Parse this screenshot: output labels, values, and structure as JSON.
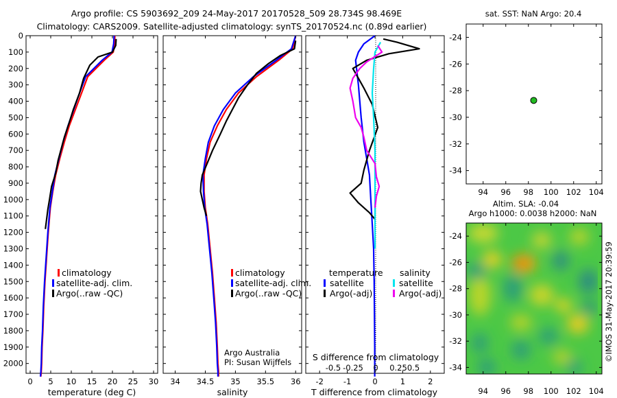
{
  "header": {
    "line1": "Argo profile: CS 5903692_209 24-May-2017 20170528_509 28.734S 98.469E",
    "line2": "Climatology: CARS2009. Satellite-adjusted climatology: synTS_20170524.nc (0.89d earlier)"
  },
  "colors": {
    "climatology": "#ff0000",
    "satellite": "#0000ff",
    "argo": "#000000",
    "salinity_satellite": "#00e5ee",
    "salinity_argo": "#ee00ee",
    "position_marker": "#22bb22"
  },
  "chart_data": [
    {
      "type": "line",
      "name": "temperature-profile",
      "xlabel": "temperature (deg C)",
      "ylabel": "",
      "xlim": [
        -1,
        31
      ],
      "ylim": [
        2060,
        0
      ],
      "xticks": [
        0,
        5,
        10,
        15,
        20,
        25,
        30
      ],
      "yticks": [
        0,
        100,
        200,
        300,
        400,
        500,
        600,
        700,
        800,
        900,
        1000,
        1100,
        1200,
        1300,
        1400,
        1500,
        1600,
        1700,
        1800,
        1900,
        2000
      ],
      "legend": [
        "climatology",
        "satellite-adj. clim.",
        "Argo(..raw -QC)"
      ],
      "series": [
        {
          "name": "climatology",
          "color": "#ff0000",
          "x": [
            20.6,
            20.5,
            20.2,
            18.0,
            14.0,
            12.5,
            11.0,
            9.5,
            8.3,
            7.2,
            6.2,
            5.5,
            4.9,
            4.4,
            4.0,
            3.6,
            3.3,
            3.1,
            2.9,
            2.8,
            2.7,
            2.6
          ],
          "y": [
            0,
            50,
            100,
            150,
            250,
            350,
            450,
            550,
            650,
            750,
            850,
            950,
            1050,
            1200,
            1350,
            1500,
            1650,
            1800,
            1900,
            2000,
            2050,
            2080
          ]
        },
        {
          "name": "satellite-adj. clim.",
          "color": "#0000ff",
          "x": [
            20.4,
            20.3,
            19.9,
            17.5,
            13.5,
            12.0,
            10.6,
            9.2,
            8.0,
            7.0,
            6.0,
            5.4,
            4.8,
            4.3,
            3.9,
            3.5,
            3.2,
            3.0,
            2.8,
            2.7,
            2.6,
            2.5
          ],
          "y": [
            0,
            50,
            100,
            150,
            250,
            350,
            450,
            550,
            650,
            750,
            850,
            950,
            1050,
            1200,
            1350,
            1500,
            1650,
            1800,
            1900,
            2000,
            2050,
            2080
          ]
        },
        {
          "name": "Argo(..raw -QC)",
          "color": "#000000",
          "x": [
            20.9,
            20.8,
            20.0,
            16.5,
            14.5,
            13.0,
            12.0,
            10.5,
            9.5,
            8.3,
            6.8,
            6.2,
            5.2,
            4.7,
            4.3,
            4.0,
            3.7
          ],
          "y": [
            20,
            60,
            100,
            130,
            180,
            260,
            350,
            450,
            530,
            620,
            760,
            840,
            920,
            1000,
            1060,
            1120,
            1180
          ]
        }
      ],
      "annotations": []
    },
    {
      "type": "line",
      "name": "salinity-profile",
      "xlabel": "salinity",
      "xlim": [
        33.8,
        36.1
      ],
      "ylim": [
        2060,
        0
      ],
      "xticks": [
        34,
        34.5,
        35,
        35.5,
        36
      ],
      "legend": [
        "climatology",
        "satellite-adj. clim.",
        "Argo(..raw -QC)"
      ],
      "series": [
        {
          "name": "climatology",
          "color": "#ff0000",
          "x": [
            36.0,
            35.95,
            35.72,
            35.35,
            35.05,
            34.85,
            34.7,
            34.58,
            34.52,
            34.48,
            34.48,
            34.5,
            34.54,
            34.58,
            34.62,
            34.65,
            34.68,
            34.7,
            34.71,
            34.72,
            34.72
          ],
          "y": [
            0,
            80,
            150,
            250,
            350,
            450,
            550,
            650,
            750,
            850,
            950,
            1050,
            1150,
            1300,
            1450,
            1600,
            1750,
            1900,
            2000,
            2050,
            2080
          ]
        },
        {
          "name": "satellite-adj. clim.",
          "color": "#0000ff",
          "x": [
            36.0,
            35.93,
            35.68,
            35.3,
            35.0,
            34.8,
            34.65,
            34.55,
            34.5,
            34.46,
            34.47,
            34.49,
            34.53,
            34.57,
            34.61,
            34.64,
            34.67,
            34.69,
            34.7,
            34.71,
            34.71
          ],
          "y": [
            0,
            80,
            150,
            250,
            350,
            450,
            550,
            650,
            750,
            850,
            950,
            1050,
            1150,
            1300,
            1450,
            1600,
            1750,
            1900,
            2000,
            2050,
            2080
          ]
        },
        {
          "name": "Argo(..raw -QC)",
          "color": "#000000",
          "x": [
            36.0,
            35.98,
            35.75,
            35.55,
            35.35,
            35.2,
            35.05,
            34.95,
            34.85,
            34.75,
            34.62,
            34.53,
            34.45,
            34.43,
            34.42,
            34.45,
            34.48,
            34.52
          ],
          "y": [
            30,
            80,
            120,
            170,
            230,
            300,
            380,
            450,
            520,
            600,
            700,
            780,
            850,
            900,
            950,
            1000,
            1050,
            1100
          ]
        }
      ],
      "annotations": [
        "Argo Australia",
        "PI: Susan Wijffels"
      ]
    },
    {
      "type": "line",
      "name": "difference-profile",
      "xlabel": "T difference from climatology",
      "xlabel_top": "S difference from climatology",
      "xlim": [
        -2.5,
        2.5
      ],
      "ylim": [
        2060,
        0
      ],
      "xticks": [
        -2,
        -1,
        0,
        1,
        2
      ],
      "xticks_top": [
        -0.5,
        -0.25,
        0,
        0.25,
        0.5
      ],
      "legend_groups": {
        "temperature": [
          "satellite",
          "Argo(-adj)"
        ],
        "salinity": [
          "satellite",
          "Argo(-adj)"
        ]
      },
      "series": [
        {
          "name": "temperature satellite",
          "color": "#0000ff",
          "x": [
            0.0,
            -0.4,
            -0.6,
            -0.7,
            -0.6,
            -0.5,
            -0.4,
            -0.3,
            -0.2,
            -0.15,
            -0.1,
            -0.05,
            -0.03,
            -0.02,
            -0.01,
            -0.01
          ],
          "y": [
            0,
            50,
            100,
            150,
            300,
            500,
            650,
            750,
            850,
            1000,
            1150,
            1300,
            1500,
            1700,
            1900,
            2080
          ]
        },
        {
          "name": "temperature Argo(-adj)",
          "color": "#000000",
          "x": [
            0.3,
            0.8,
            1.6,
            0.5,
            -0.3,
            -0.8,
            -0.6,
            -0.4,
            -0.1,
            0.1,
            -0.2,
            -0.4,
            -0.5,
            -0.9,
            -0.6,
            -0.2,
            0.0
          ],
          "y": [
            20,
            40,
            80,
            110,
            150,
            200,
            260,
            320,
            420,
            560,
            700,
            820,
            900,
            960,
            1020,
            1080,
            1120
          ]
        },
        {
          "name": "salinity satellite",
          "color": "#00e5ee",
          "x": [
            0.2,
            0.0,
            -0.05,
            -0.1,
            -0.05,
            0.0,
            0.0,
            0.0,
            0.0
          ],
          "y": [
            40,
            100,
            200,
            350,
            500,
            700,
            900,
            1100,
            1300
          ]
        },
        {
          "name": "salinity Argo(-adj)",
          "color": "#ee00ee",
          "x": [
            0.1,
            0.25,
            -0.3,
            -0.55,
            -0.8,
            -0.9,
            -0.8,
            -0.7,
            -0.5,
            -0.4,
            -0.3,
            0.0,
            0.05,
            0.15,
            0.05,
            0.0
          ],
          "y": [
            60,
            100,
            160,
            200,
            260,
            320,
            400,
            500,
            560,
            620,
            700,
            780,
            860,
            920,
            980,
            1050
          ]
        }
      ],
      "annotations": []
    },
    {
      "type": "scatter",
      "name": "position-map",
      "title": "sat. SST: NaN Argo: 20.4",
      "xlim": [
        92.5,
        104.5
      ],
      "ylim": [
        -35,
        -23
      ],
      "xticks": [
        94,
        96,
        98,
        100,
        102,
        104
      ],
      "yticks": [
        -24,
        -26,
        -28,
        -30,
        -32,
        -34
      ],
      "points": [
        {
          "x": 98.469,
          "y": -28.734
        }
      ]
    },
    {
      "type": "heatmap",
      "name": "sla-map",
      "title_line1": "Altim. SLA: -0.04",
      "title_line2": "Argo h1000: 0.0038 h2000: NaN",
      "xlim": [
        92.5,
        104.5
      ],
      "ylim": [
        -34.5,
        -23
      ],
      "xticks": [
        94,
        96,
        98,
        100,
        102,
        104
      ],
      "yticks": [
        -24,
        -26,
        -28,
        -30,
        -32,
        -34
      ],
      "side_label": "©IMOS 31-May-2017 20:39:59"
    }
  ]
}
